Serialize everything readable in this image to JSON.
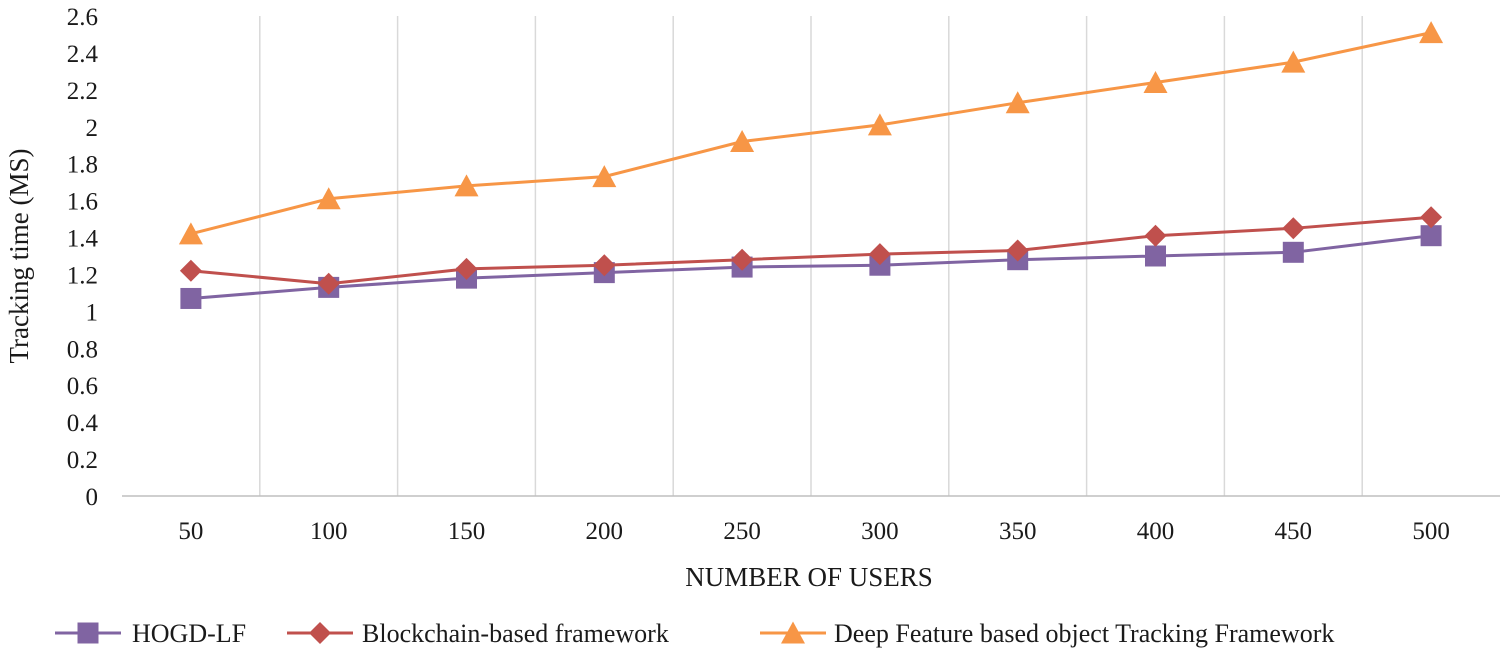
{
  "chart_data": {
    "type": "line",
    "title": "",
    "xlabel": "NUMBER OF USERS",
    "ylabel": "Tracking time (MS)",
    "categories": [
      "50",
      "100",
      "150",
      "200",
      "250",
      "300",
      "350",
      "400",
      "450",
      "500"
    ],
    "ylim": [
      0,
      2.6
    ],
    "yticks": [
      0,
      0.2,
      0.4,
      0.6,
      0.8,
      1,
      1.2,
      1.4,
      1.6,
      1.8,
      2,
      2.2,
      2.4,
      2.6
    ],
    "grid": "vertical",
    "legend_position": "bottom",
    "series": [
      {
        "name": "HOGD-LF",
        "marker": "square",
        "color": "#8064a2",
        "values": [
          1.07,
          1.13,
          1.18,
          1.21,
          1.24,
          1.25,
          1.28,
          1.3,
          1.32,
          1.41
        ]
      },
      {
        "name": "Blockchain-based framework",
        "marker": "diamond",
        "color": "#c0504d",
        "values": [
          1.22,
          1.15,
          1.23,
          1.25,
          1.28,
          1.31,
          1.33,
          1.41,
          1.45,
          1.51
        ]
      },
      {
        "name": "Deep Feature based object Tracking Framework",
        "marker": "triangle",
        "color": "#f79646",
        "values": [
          1.42,
          1.61,
          1.68,
          1.73,
          1.92,
          2.01,
          2.13,
          2.24,
          2.35,
          2.51
        ]
      }
    ]
  }
}
